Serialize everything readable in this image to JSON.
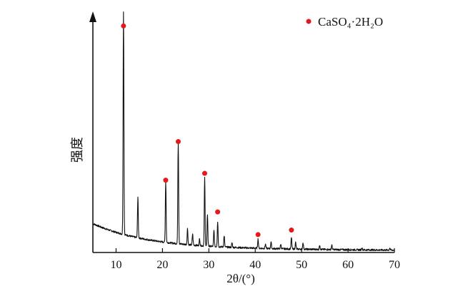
{
  "chart_data": {
    "type": "line",
    "title": "",
    "xlabel": "2θ/(°)",
    "ylabel": "强度",
    "xlim": [
      5,
      70
    ],
    "ylim": [
      0,
      100
    ],
    "x_ticks": [
      10,
      20,
      30,
      40,
      50,
      60,
      70
    ],
    "y_ticks": [],
    "grid": false,
    "legend_position": "top-right",
    "legend": [
      {
        "label": "CaSO₄·2H₂O",
        "marker": "circle",
        "color": "#e31a1c"
      }
    ],
    "line_color": "#111111",
    "baseline": {
      "start": 12,
      "mid": 6,
      "end": 1
    },
    "series": [
      {
        "peaks": [
          {
            "x": 11.6,
            "y": 98
          },
          {
            "x": 14.7,
            "y": 18
          },
          {
            "x": 20.7,
            "y": 27
          },
          {
            "x": 23.4,
            "y": 45
          },
          {
            "x": 25.4,
            "y": 7
          },
          {
            "x": 26.5,
            "y": 5
          },
          {
            "x": 28.0,
            "y": 3
          },
          {
            "x": 29.1,
            "y": 30
          },
          {
            "x": 29.7,
            "y": 14
          },
          {
            "x": 31.1,
            "y": 7
          },
          {
            "x": 31.9,
            "y": 11
          },
          {
            "x": 33.3,
            "y": 5
          },
          {
            "x": 35.0,
            "y": 2
          },
          {
            "x": 40.6,
            "y": 4
          },
          {
            "x": 42.2,
            "y": 2
          },
          {
            "x": 43.4,
            "y": 3
          },
          {
            "x": 45.5,
            "y": 2
          },
          {
            "x": 47.8,
            "y": 5
          },
          {
            "x": 48.7,
            "y": 3
          },
          {
            "x": 50.3,
            "y": 3
          },
          {
            "x": 53.9,
            "y": 2
          },
          {
            "x": 56.5,
            "y": 2
          },
          {
            "x": 63.0,
            "y": 1
          },
          {
            "x": 69.0,
            "y": 1
          }
        ]
      }
    ],
    "markers": [
      {
        "x": 11.6,
        "y": 98
      },
      {
        "x": 20.7,
        "y": 30
      },
      {
        "x": 23.4,
        "y": 47
      },
      {
        "x": 29.1,
        "y": 33
      },
      {
        "x": 31.9,
        "y": 16
      },
      {
        "x": 40.6,
        "y": 6
      },
      {
        "x": 47.8,
        "y": 8
      }
    ]
  }
}
